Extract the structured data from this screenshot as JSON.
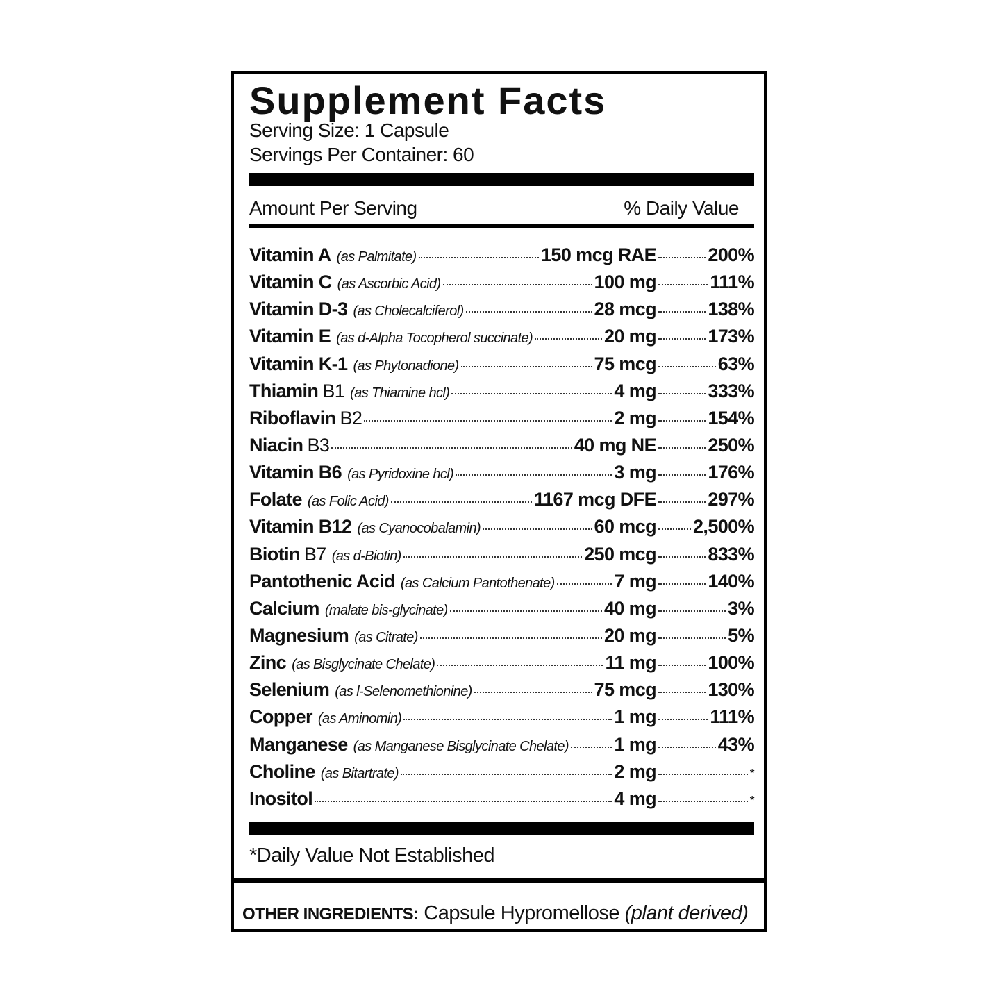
{
  "header": {
    "title": "Supplement Facts",
    "serving_size": "Serving Size: 1 Capsule",
    "servings_per_container": "Servings Per Container: 60"
  },
  "table": {
    "amount_header": "Amount Per Serving",
    "dv_header": "% Daily Value",
    "rows": [
      {
        "name": "Vitamin A",
        "note": "(as Palmitate)",
        "amount": "150 mcg RAE",
        "dv": "200%"
      },
      {
        "name": "Vitamin C",
        "note": "(as Ascorbic Acid)",
        "amount": "100 mg",
        "dv": "111%"
      },
      {
        "name": "Vitamin D-3",
        "note": "(as Cholecalciferol)",
        "amount": "28 mcg",
        "dv": "138%"
      },
      {
        "name": "Vitamin E",
        "note": "(as d-Alpha Tocopherol succinate)",
        "amount": "20 mg",
        "dv": "173%"
      },
      {
        "name": "Vitamin K-1",
        "note": "(as Phytonadione)",
        "amount": "75 mcg",
        "dv": "63%"
      },
      {
        "name": "Thiamin",
        "sub": "B1",
        "note": "(as Thiamine hcl)",
        "amount": "4 mg",
        "dv": "333%"
      },
      {
        "name": "Riboflavin",
        "sub": "B2",
        "amount": "2 mg",
        "dv": "154%"
      },
      {
        "name": "Niacin",
        "sub": "B3",
        "amount": "40 mg NE",
        "dv": "250%"
      },
      {
        "name": "Vitamin B6",
        "note": "(as Pyridoxine hcl)",
        "amount": "3 mg",
        "dv": "176%"
      },
      {
        "name": "Folate",
        "note": "(as Folic Acid)",
        "amount": "1167 mcg DFE",
        "dv": "297%"
      },
      {
        "name": "Vitamin B12",
        "note": "(as Cyanocobalamin)",
        "amount": "60 mcg",
        "dv": "2,500%"
      },
      {
        "name": "Biotin",
        "sub": "B7",
        "note": "(as d-Biotin)",
        "amount": "250 mcg",
        "dv": "833%"
      },
      {
        "name": "Pantothenic Acid",
        "note": "(as Calcium Pantothenate)",
        "amount": "7 mg",
        "dv": "140%"
      },
      {
        "name": "Calcium",
        "note": "(malate bis-glycinate)",
        "amount": "40 mg",
        "dv": "3%"
      },
      {
        "name": "Magnesium",
        "note": "(as Citrate)",
        "amount": "20 mg",
        "dv": "5%"
      },
      {
        "name": "Zinc",
        "note": "(as Bisglycinate Chelate)",
        "amount": "11 mg",
        "dv": "100%"
      },
      {
        "name": "Selenium",
        "note": "(as l-Selenomethionine)",
        "amount": "75 mcg",
        "dv": "130%"
      },
      {
        "name": "Copper",
        "note": "(as Aminomin)",
        "amount": "1 mg",
        "dv": "111%"
      },
      {
        "name": "Manganese",
        "note": "(as Manganese Bisglycinate Chelate)",
        "amount": "1 mg",
        "dv": "43%"
      },
      {
        "name": "Choline",
        "note": "(as Bitartrate)",
        "amount": "2 mg",
        "dv": "*"
      },
      {
        "name": "Inositol",
        "amount": "4 mg",
        "dv": "*"
      }
    ]
  },
  "footnote": "*Daily Value Not Established",
  "other_ingredients": {
    "label": "OTHER INGREDIENTS:",
    "text": "Capsule Hypromellose",
    "note": "(plant derived)"
  }
}
